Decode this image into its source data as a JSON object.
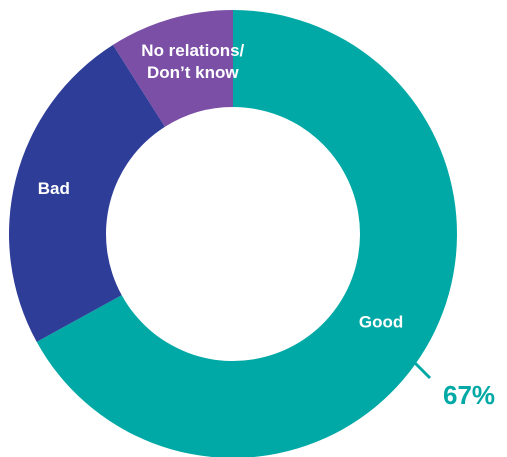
{
  "chart_data": {
    "type": "pie",
    "donut": true,
    "categories": [
      "Good",
      "Bad",
      "No relations/ Don’t know"
    ],
    "values": [
      67,
      24,
      9
    ],
    "colors": [
      "#00a9a5",
      "#2e3d98",
      "#7b4fa6"
    ],
    "label_lines": [
      [
        "Good"
      ],
      [
        "Bad"
      ],
      [
        "No relations/",
        "Don’t know"
      ]
    ],
    "callout": {
      "category": "Good",
      "text": "67%",
      "color": "#00a9a5"
    },
    "title": "",
    "legend": "none"
  }
}
